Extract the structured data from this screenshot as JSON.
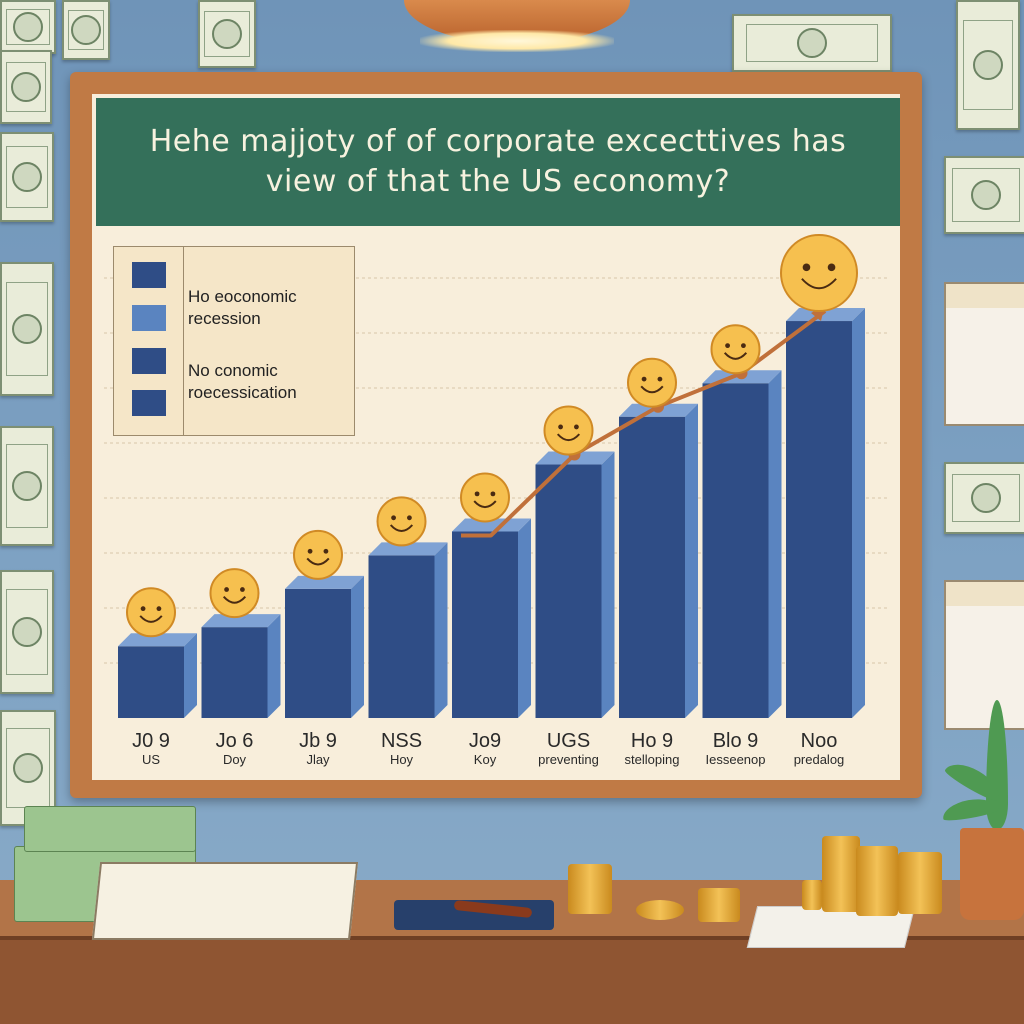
{
  "title": {
    "line1": "Hehe majjoty of of corporate excecttives has",
    "line2": "view of that the US economy?"
  },
  "legend": [
    {
      "label": "Ho eoconomic",
      "color": "#2f4d86"
    },
    {
      "label": "recession",
      "color": "#5a84c0"
    },
    {
      "label": "No conomic",
      "color": "#2f4d86"
    },
    {
      "label": "roecessication",
      "color": "#2f4d86"
    }
  ],
  "chart_data": {
    "type": "bar",
    "title": "Hehe majjoty of of corporate excecttives has view of that the US economy?",
    "categories": [
      {
        "top": "J0 9",
        "bottom": "US"
      },
      {
        "top": "Jo 6",
        "bottom": "Doy"
      },
      {
        "top": "Jb 9",
        "bottom": "Jlay"
      },
      {
        "top": "NSS",
        "bottom": "Hoy"
      },
      {
        "top": "Jo9",
        "bottom": "Koy"
      },
      {
        "top": "UGS",
        "bottom": "preventing"
      },
      {
        "top": "Ho 9",
        "bottom": "stelloping"
      },
      {
        "top": "Blo 9",
        "bottom": "Iesseenop"
      },
      {
        "top": "Noo",
        "bottom": "predalog"
      }
    ],
    "values": [
      15,
      19,
      27,
      34,
      39,
      53,
      63,
      70,
      83
    ],
    "ylim": [
      0,
      92
    ],
    "grid": true,
    "trend_line": true,
    "colors": {
      "bar_front": "#2f4d86",
      "bar_side": "#5a84c0",
      "bar_top": "#7fa2d4",
      "trend": "#c0703a"
    }
  }
}
